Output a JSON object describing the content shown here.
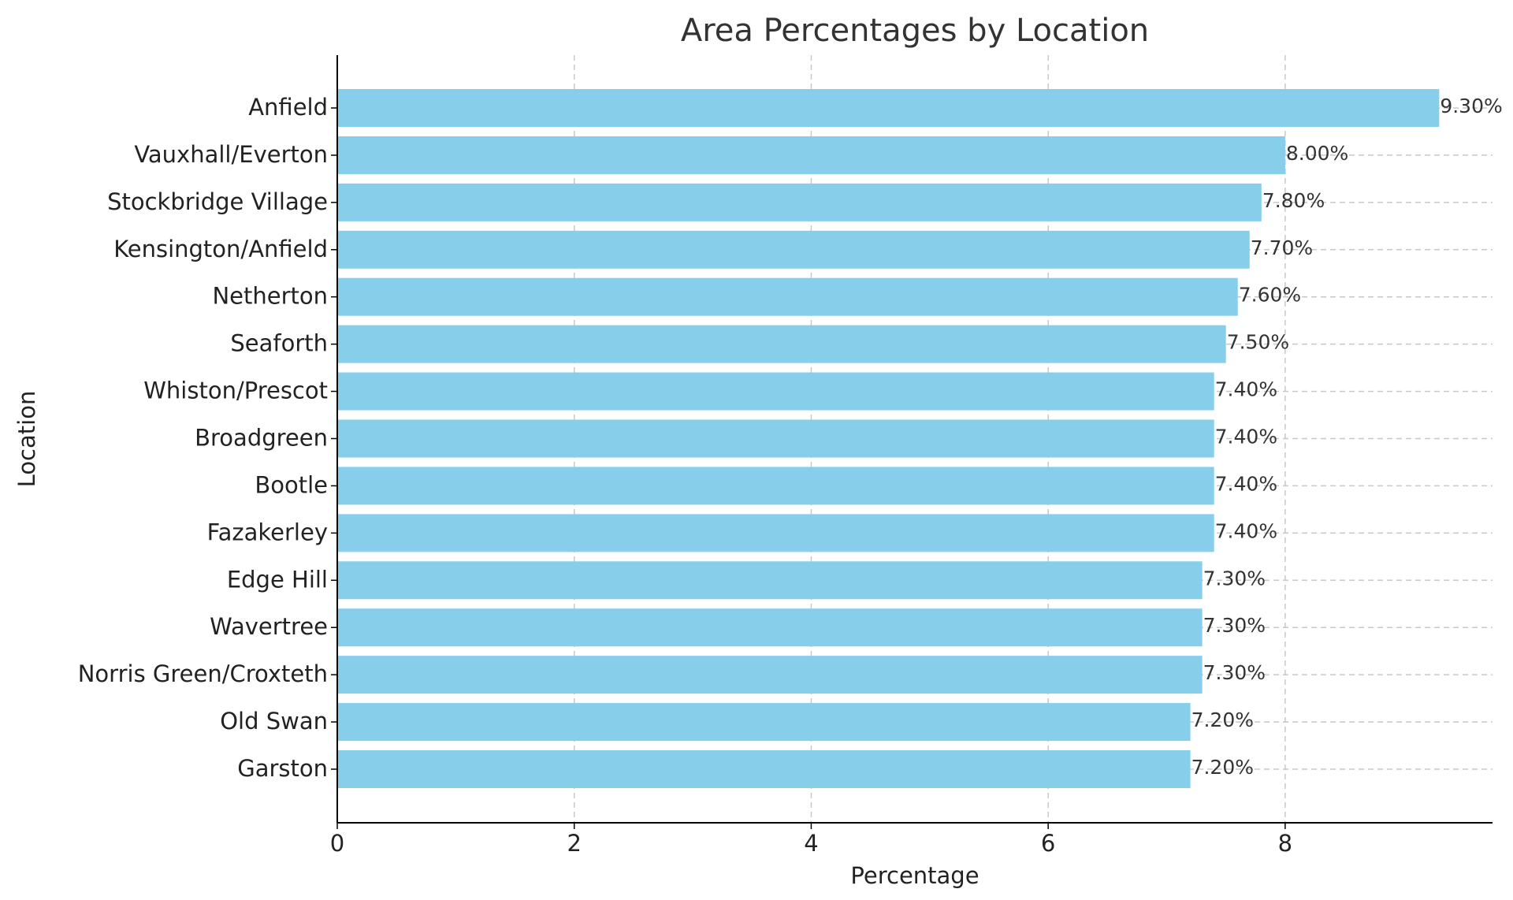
{
  "chart_data": {
    "type": "bar",
    "orientation": "horizontal",
    "title": "Area Percentages by Location",
    "xlabel": "Percentage",
    "ylabel": "Location",
    "xlim": [
      0,
      9.75
    ],
    "x_ticks": [
      0,
      2,
      4,
      6,
      8
    ],
    "grid": true,
    "bar_color": "#87CEEB",
    "categories": [
      "Anfield",
      "Vauxhall/Everton",
      "Stockbridge Village",
      "Kensington/Anfield",
      "Netherton",
      "Seaforth",
      "Whiston/Prescot",
      "Broadgreen",
      "Bootle",
      "Fazakerley",
      "Edge Hill",
      "Wavertree",
      "Norris Green/Croxteth",
      "Old Swan",
      "Garston"
    ],
    "values": [
      9.3,
      8.0,
      7.8,
      7.7,
      7.6,
      7.5,
      7.4,
      7.4,
      7.4,
      7.4,
      7.3,
      7.3,
      7.3,
      7.2,
      7.2
    ],
    "data_labels": [
      "9.30%",
      "8.00%",
      "7.80%",
      "7.70%",
      "7.60%",
      "7.50%",
      "7.40%",
      "7.40%",
      "7.40%",
      "7.40%",
      "7.30%",
      "7.30%",
      "7.30%",
      "7.20%",
      "7.20%"
    ]
  }
}
